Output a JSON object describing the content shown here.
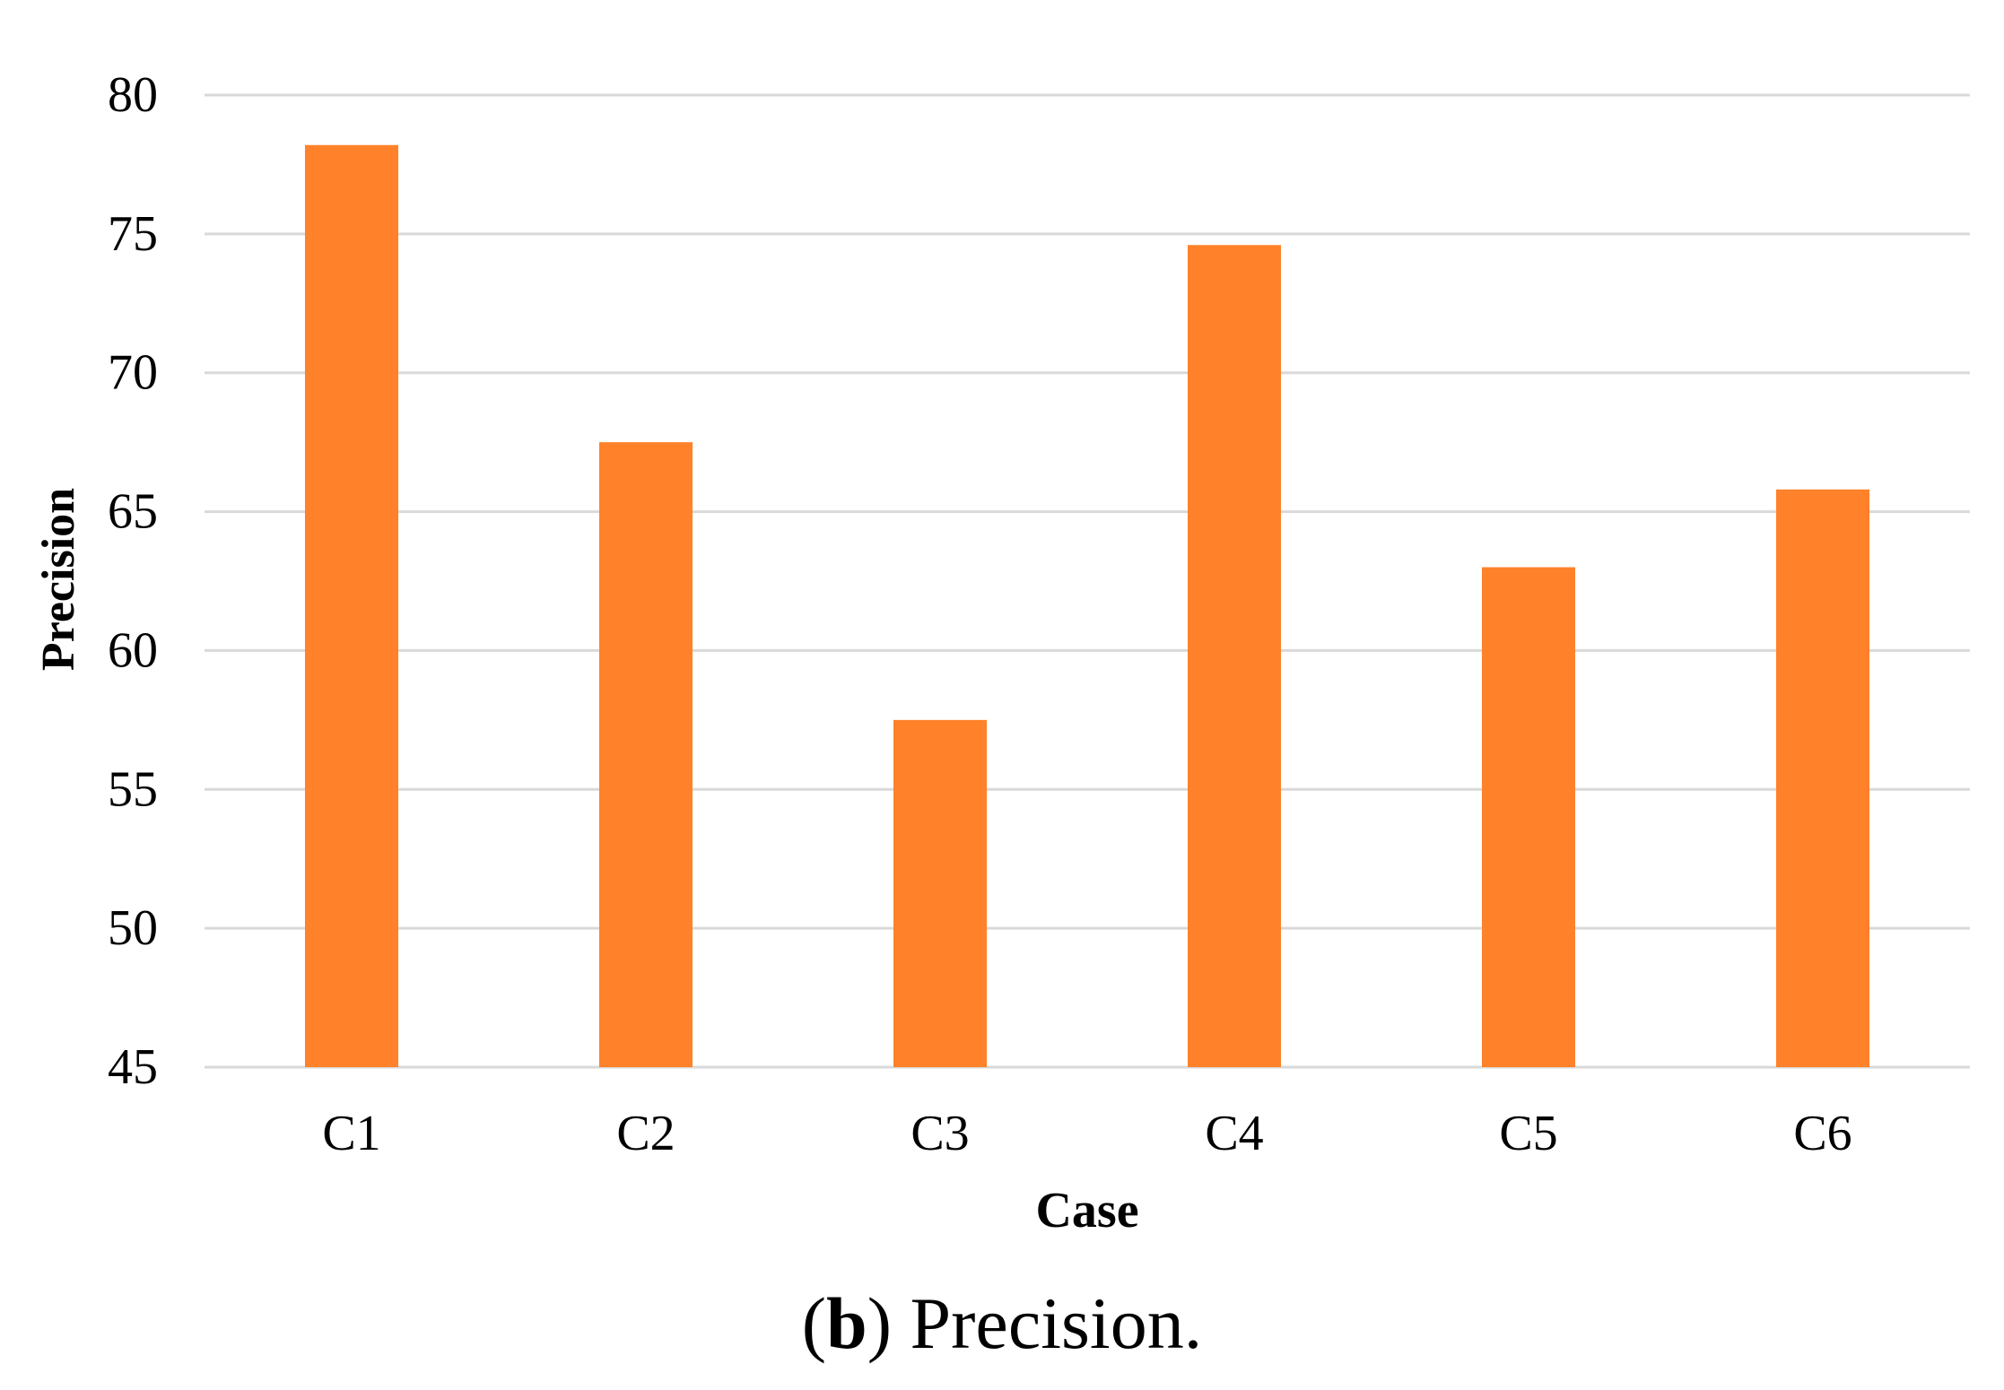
{
  "chart_data": {
    "type": "bar",
    "categories": [
      "C1",
      "C2",
      "C3",
      "C4",
      "C5",
      "C6"
    ],
    "values": [
      78.2,
      67.5,
      57.5,
      74.6,
      63.0,
      65.8
    ],
    "xlabel": "Case",
    "ylabel": "Precision",
    "ylim": [
      45,
      80
    ],
    "yticks": [
      45,
      50,
      55,
      60,
      65,
      70,
      75,
      80
    ],
    "grid": true,
    "bar_color": "#FF8129",
    "grid_color": "#D9D9D9"
  },
  "caption": {
    "open": "(",
    "label": "b",
    "close": ")",
    "text": " Precision."
  }
}
